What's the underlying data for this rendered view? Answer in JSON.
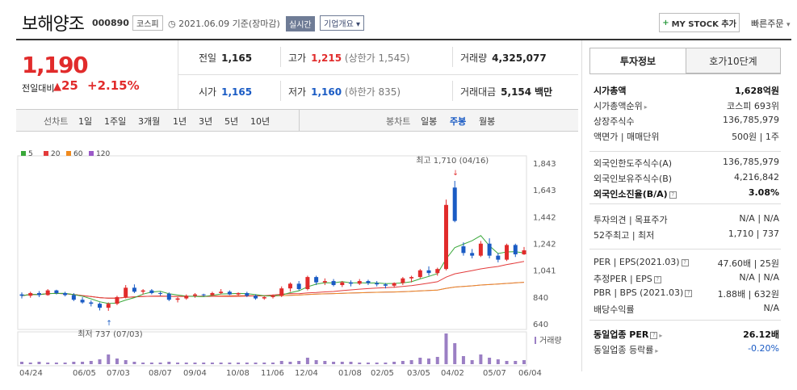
{
  "header": {
    "title": "보해양조",
    "code": "000890",
    "market": "코스피",
    "date": "2021.06.09 기준(장마감)",
    "realtime_label": "실시간",
    "overview_label": "기업개요",
    "mystock_label": "MY STOCK 추가",
    "quick_order_label": "빠른주문"
  },
  "price": {
    "current": "1,190",
    "change_label": "전일대비",
    "change": "25",
    "change_rate": "+2.15%"
  },
  "stats": {
    "prev_close_label": "전일",
    "prev_close": "1,165",
    "high_label": "고가",
    "high": "1,215",
    "upper_limit": "(상한가 1,545)",
    "volume_label": "거래량",
    "volume": "4,325,077",
    "open_label": "시가",
    "open": "1,165",
    "low_label": "저가",
    "low": "1,160",
    "lower_limit": "(하한가 835)",
    "amount_label": "거래대금",
    "amount": "5,154",
    "amount_unit": "백만"
  },
  "chart_tabs": {
    "line_label": "선차트",
    "line_items": [
      "1일",
      "1주일",
      "3개월",
      "1년",
      "3년",
      "5년",
      "10년"
    ],
    "candle_label": "봉차트",
    "candle_items": [
      "일봉",
      "주봉",
      "월봉"
    ],
    "selected_candle": "주봉"
  },
  "right_panel": {
    "tabs": [
      "투자정보",
      "호가10단계"
    ],
    "rows1": [
      {
        "k": "시가총액",
        "v": "1,628억원",
        "strong": true
      },
      {
        "k": "시가총액순위",
        "v": "코스피 693위"
      },
      {
        "k": "상장주식수",
        "v": "136,785,979"
      },
      {
        "k": "액면가 | 매매단위",
        "v": "500원 | 1주"
      }
    ],
    "rows2": [
      {
        "k": "외국인한도주식수(A)",
        "v": "136,785,979"
      },
      {
        "k": "외국인보유주식수(B)",
        "v": "4,216,842"
      },
      {
        "k": "외국인소진율(B/A)",
        "v": "3.08%",
        "strong": true
      }
    ],
    "rows3": [
      {
        "k": "투자의견 | 목표주가",
        "v": "N/A | N/A"
      },
      {
        "k": "52주최고 | 최저",
        "v": "1,710 | 737"
      }
    ],
    "rows4": [
      {
        "k": "PER | EPS(2021.03)",
        "v": "47.60배 | 25원"
      },
      {
        "k": "추정PER | EPS",
        "v": "N/A | N/A"
      },
      {
        "k": "PBR | BPS (2021.03)",
        "v": "1.88배 | 632원"
      },
      {
        "k": "배당수익률",
        "v": "N/A"
      }
    ],
    "rows5": [
      {
        "k": "동일업종 PER",
        "v": "26.12배",
        "strong": true
      },
      {
        "k": "동일업종 등락률",
        "v": "-0.20%"
      }
    ]
  },
  "chart_data": {
    "type": "candlestick",
    "legend": [
      "5",
      "20",
      "60",
      "120"
    ],
    "colors": {
      "ma5": "#3aa83a",
      "ma20": "#e33b3b",
      "ma60": "#f08a1e",
      "ma120": "#9b59c8",
      "up": "#e12b2b",
      "down": "#1a5bc4",
      "volume": "#9b7fc4"
    },
    "y_ticks": [
      "1,843",
      "1,643",
      "1,442",
      "1,242",
      "1,041",
      "840",
      "640"
    ],
    "ylim": [
      640,
      1843
    ],
    "x_labels": [
      "04/24",
      "06/05",
      "07/03",
      "08/07",
      "09/04",
      "10/08",
      "11/06",
      "12/04",
      "01/08",
      "02/05",
      "03/05",
      "04/02",
      "05/07",
      "06/04"
    ],
    "volume_label": "거래량",
    "annotation_high": "최고 1,710 (04/16)",
    "annotation_low": "최저 737 (07/03)",
    "candles": [
      [
        860,
        875,
        830,
        850
      ],
      [
        850,
        880,
        835,
        870
      ],
      [
        870,
        885,
        840,
        855
      ],
      [
        855,
        900,
        850,
        890
      ],
      [
        890,
        895,
        860,
        870
      ],
      [
        870,
        880,
        845,
        855
      ],
      [
        855,
        870,
        810,
        820
      ],
      [
        820,
        840,
        790,
        800
      ],
      [
        800,
        815,
        770,
        790
      ],
      [
        790,
        800,
        740,
        760
      ],
      [
        760,
        800,
        737,
        790
      ],
      [
        790,
        850,
        780,
        840
      ],
      [
        840,
        930,
        830,
        910
      ],
      [
        910,
        935,
        870,
        880
      ],
      [
        880,
        900,
        860,
        890
      ],
      [
        890,
        900,
        860,
        870
      ],
      [
        870,
        880,
        850,
        865
      ],
      [
        865,
        875,
        810,
        820
      ],
      [
        820,
        840,
        800,
        830
      ],
      [
        830,
        860,
        820,
        850
      ],
      [
        850,
        870,
        835,
        860
      ],
      [
        860,
        865,
        845,
        855
      ],
      [
        855,
        880,
        850,
        870
      ],
      [
        870,
        900,
        860,
        880
      ],
      [
        880,
        890,
        855,
        860
      ],
      [
        860,
        875,
        850,
        870
      ],
      [
        870,
        880,
        840,
        850
      ],
      [
        850,
        860,
        820,
        830
      ],
      [
        830,
        845,
        820,
        840
      ],
      [
        840,
        860,
        830,
        850
      ],
      [
        850,
        920,
        840,
        905
      ],
      [
        905,
        950,
        880,
        940
      ],
      [
        940,
        960,
        890,
        900
      ],
      [
        900,
        1000,
        890,
        990
      ],
      [
        990,
        1000,
        930,
        950
      ],
      [
        950,
        980,
        930,
        960
      ],
      [
        960,
        975,
        920,
        930
      ],
      [
        930,
        960,
        915,
        950
      ],
      [
        950,
        965,
        920,
        940
      ],
      [
        940,
        975,
        930,
        960
      ],
      [
        960,
        970,
        930,
        945
      ],
      [
        945,
        960,
        920,
        935
      ],
      [
        935,
        945,
        905,
        925
      ],
      [
        925,
        950,
        910,
        945
      ],
      [
        945,
        990,
        930,
        980
      ],
      [
        980,
        1000,
        950,
        990
      ],
      [
        990,
        1050,
        980,
        1040
      ],
      [
        1040,
        1070,
        1000,
        1020
      ],
      [
        1020,
        1060,
        1000,
        1050
      ],
      [
        1050,
        1570,
        1040,
        1530
      ],
      [
        1660,
        1710,
        1400,
        1410
      ],
      [
        1220,
        1250,
        1150,
        1170
      ],
      [
        1170,
        1200,
        1130,
        1150
      ],
      [
        1150,
        1260,
        1140,
        1240
      ],
      [
        1240,
        1280,
        1130,
        1150
      ],
      [
        1150,
        1170,
        1100,
        1120
      ],
      [
        1120,
        1240,
        1110,
        1230
      ],
      [
        1230,
        1240,
        1140,
        1160
      ],
      [
        1160,
        1215,
        1155,
        1190
      ]
    ],
    "volumes": [
      3,
      2,
      3,
      2,
      2,
      2,
      3,
      3,
      4,
      6,
      12,
      7,
      5,
      3,
      2,
      2,
      2,
      3,
      2,
      2,
      2,
      2,
      2,
      2,
      2,
      2,
      2,
      2,
      2,
      2,
      4,
      3,
      4,
      8,
      5,
      4,
      3,
      3,
      3,
      2,
      2,
      2,
      2,
      3,
      4,
      5,
      8,
      7,
      9,
      38,
      26,
      10,
      5,
      12,
      8,
      6,
      4,
      4,
      5
    ]
  }
}
